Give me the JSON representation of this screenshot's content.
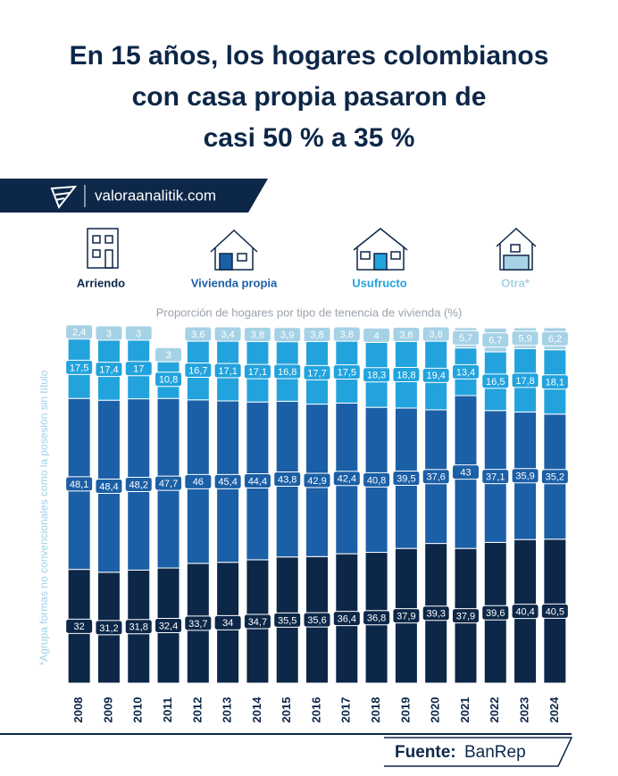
{
  "chart_data": {
    "type": "stacked_bar",
    "title": [
      "En 15 años, los hogares colombianos",
      "con casa propia pasaron de",
      "casi 50 % a 35 %"
    ],
    "brand": "valoraanalitik.com",
    "subtitle": "Proporción de hogares por tipo de tenencia de vivienda (%)",
    "y_label": "*Agrupa formas no convencionales como la posesión sin título",
    "source_label": "Fuente:",
    "source": "BanRep",
    "categories": [
      "2008",
      "2009",
      "2010",
      "2011",
      "2012",
      "2013",
      "2014",
      "2015",
      "2016",
      "2017",
      "2018",
      "2019",
      "2020",
      "2021",
      "2022",
      "2023",
      "2024"
    ],
    "ylim": [
      0,
      100
    ],
    "series": [
      {
        "name": "Arriendo",
        "color": "#0d2748",
        "values": [
          32,
          31.2,
          31.8,
          32.4,
          33.7,
          34,
          34.7,
          35.5,
          35.6,
          36.4,
          36.8,
          37.9,
          39.3,
          37.9,
          39.6,
          40.4,
          40.5
        ],
        "value_labels": [
          "32",
          "31,2",
          "31,8",
          "32,4",
          "33,7",
          "34",
          "34,7",
          "35,5",
          "35,6",
          "36,4",
          "36,8",
          "37,9",
          "39,3",
          "37,9",
          "39,6",
          "40,4",
          "40,5"
        ]
      },
      {
        "name": "Vivienda propia",
        "color": "#1b5fa6",
        "values": [
          48.1,
          48.4,
          48.2,
          47.7,
          46,
          45.4,
          44.4,
          43.8,
          42.9,
          42.4,
          40.8,
          39.5,
          37.6,
          43,
          37.1,
          35.9,
          35.2
        ],
        "value_labels": [
          "48,1",
          "48,4",
          "48,2",
          "47,7",
          "46",
          "45,4",
          "44,4",
          "43,8",
          "42,9",
          "42,4",
          "40,8",
          "39,5",
          "37,6",
          "43",
          "37,1",
          "35,9",
          "35,2"
        ]
      },
      {
        "name": "Usufructo",
        "color": "#22a3dd",
        "values": [
          17.5,
          17.4,
          17,
          10.8,
          16.7,
          17.1,
          17.1,
          16.8,
          17.7,
          17.5,
          18.3,
          18.8,
          19.4,
          13.4,
          16.5,
          17.8,
          18.1
        ],
        "value_labels": [
          "17,5",
          "17,4",
          "17",
          "10,8",
          "16,7",
          "17,1",
          "17,1",
          "16,8",
          "17,7",
          "17,5",
          "18,3",
          "18,8",
          "19,4",
          "13,4",
          "16,5",
          "17,8",
          "18,1"
        ]
      },
      {
        "name": "Otra*",
        "color": "#a6d2e6",
        "values": [
          2.4,
          3,
          3,
          3,
          3.6,
          3.4,
          3.8,
          3.9,
          3.8,
          3.8,
          4,
          3.8,
          3.8,
          5.7,
          6.7,
          5.9,
          6.2
        ],
        "value_labels": [
          "2,4",
          "3",
          "3",
          "3",
          "3,6",
          "3,4",
          "3,8",
          "3,9",
          "3,8",
          "3,8",
          "4",
          "3,8",
          "3,8",
          "5,7",
          "6,7",
          "5,9",
          "6,2"
        ]
      }
    ]
  }
}
